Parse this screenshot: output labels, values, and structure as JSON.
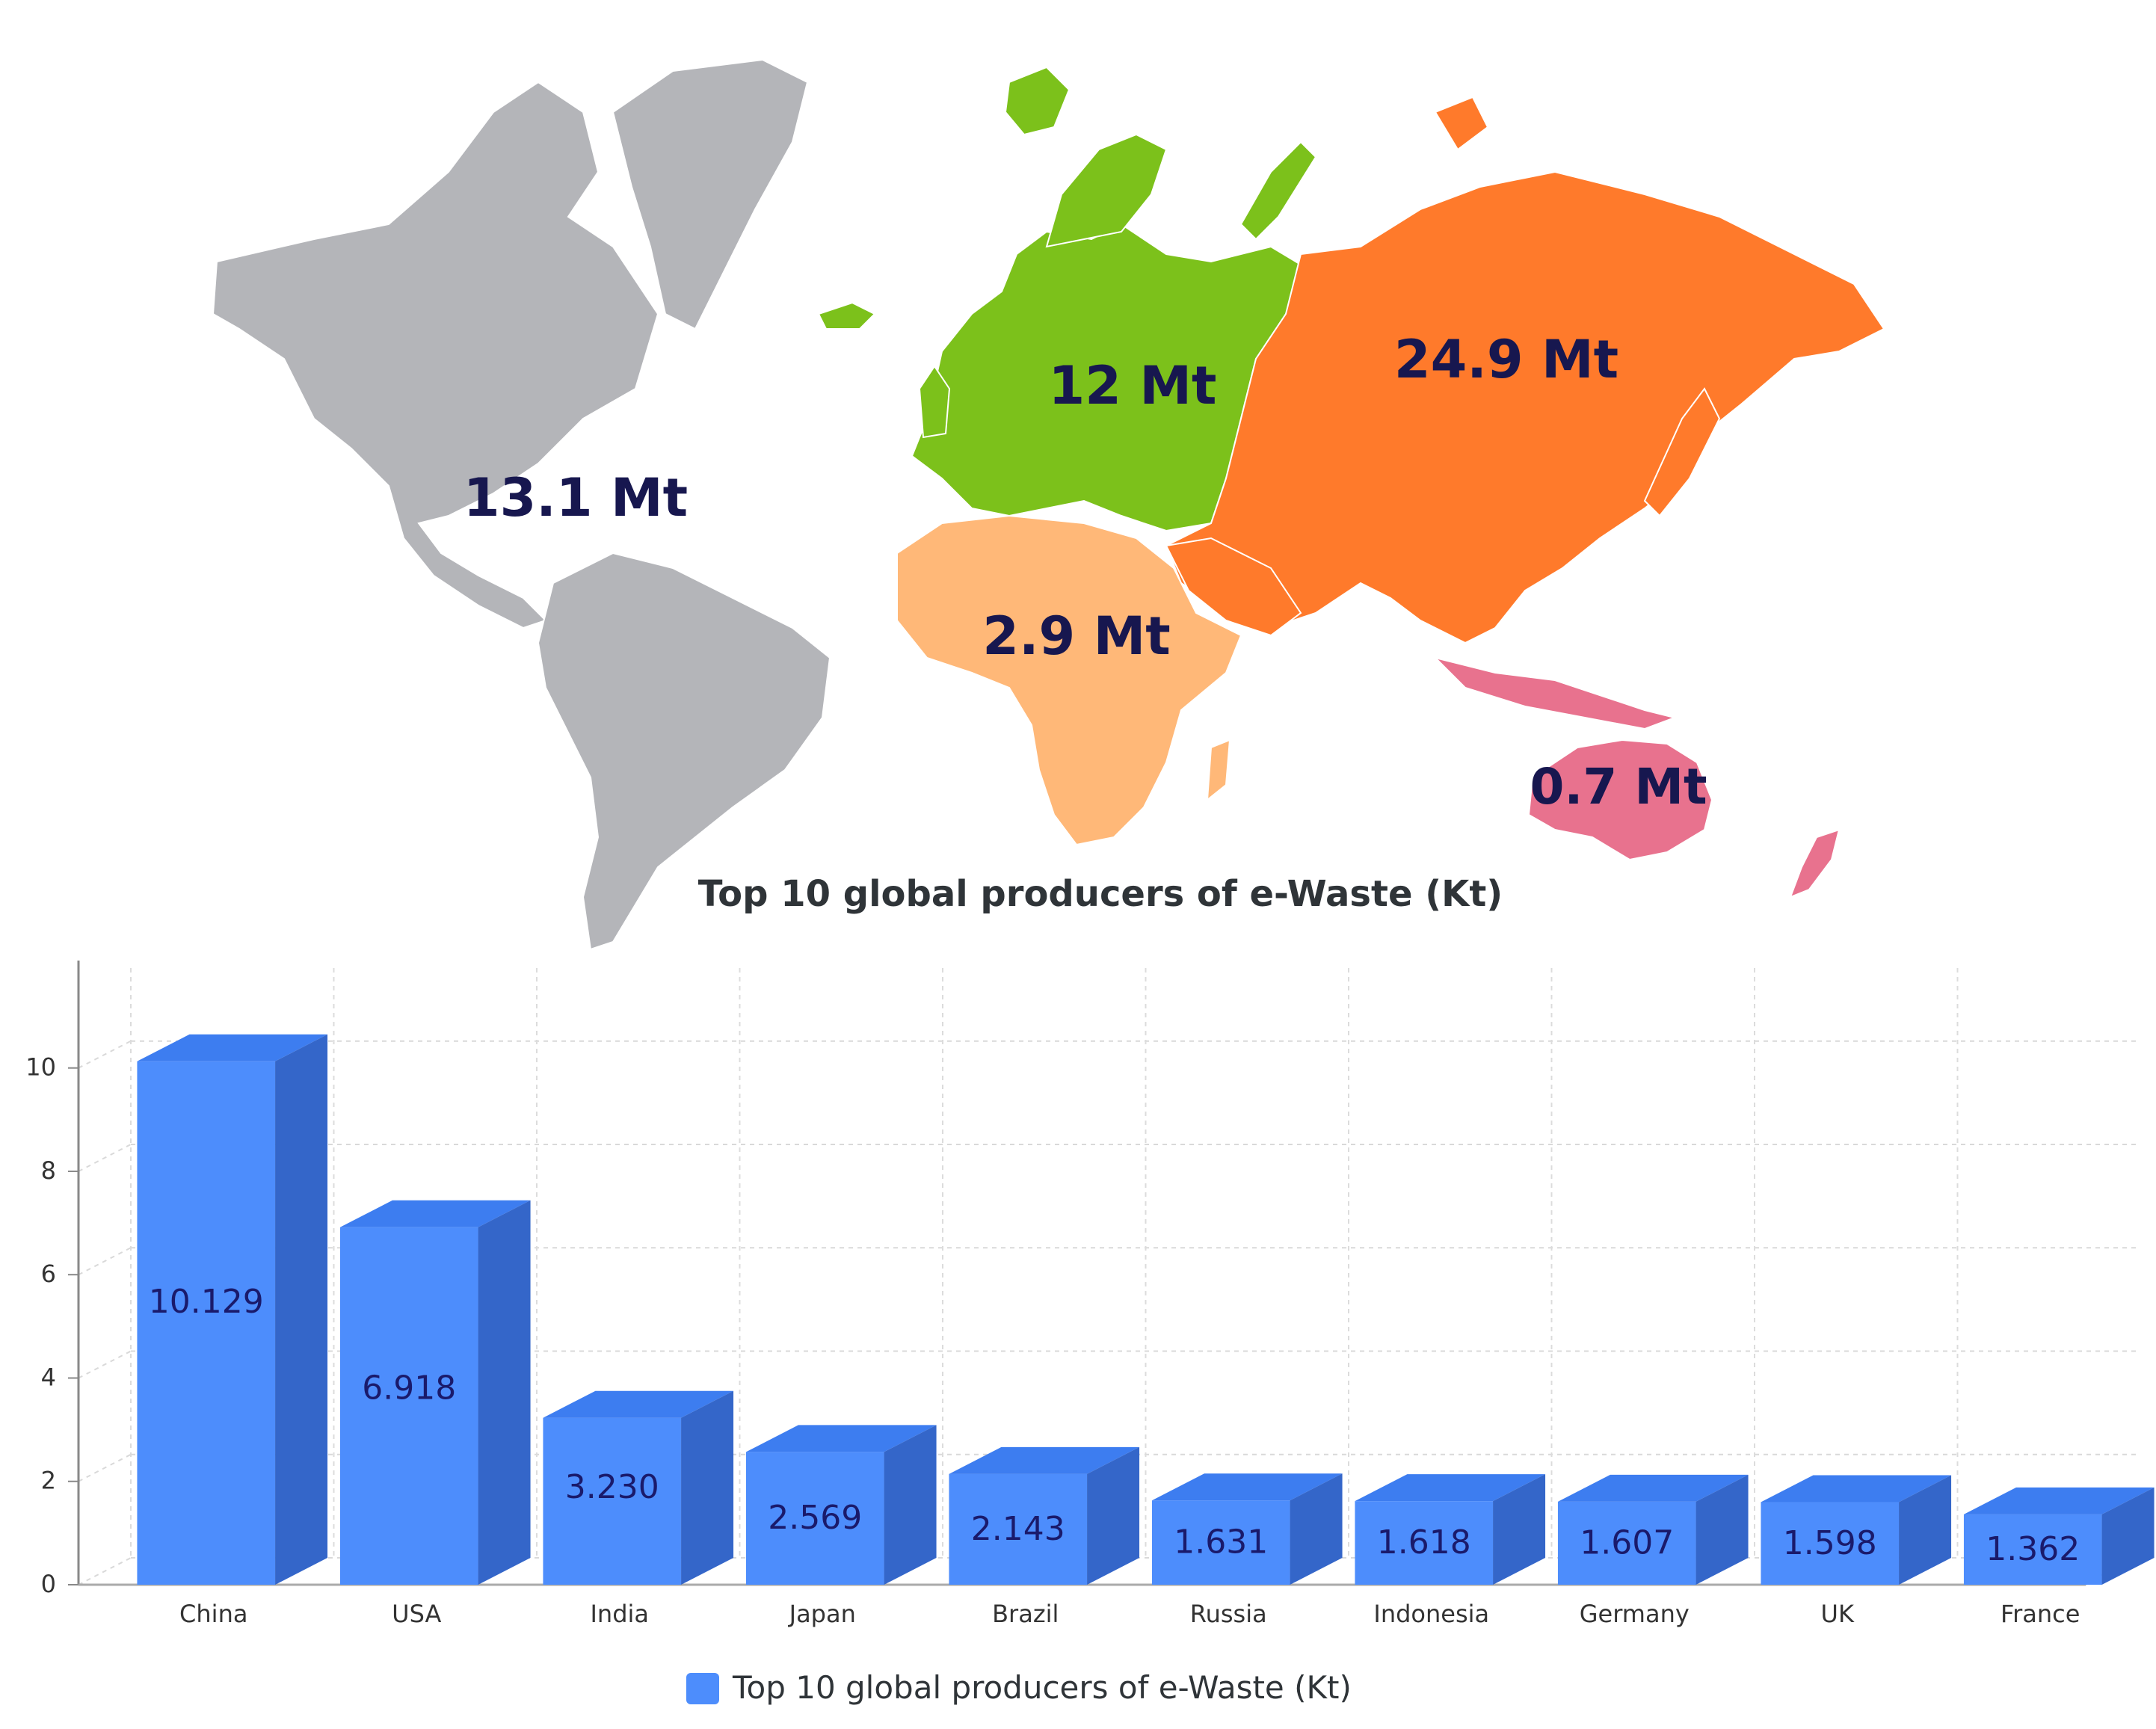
{
  "map": {
    "regions": [
      {
        "name": "americas",
        "label": "13.1 Mt",
        "color": "#b4b5b9"
      },
      {
        "name": "europe",
        "label": "12 Mt",
        "color": "#7cc11b"
      },
      {
        "name": "asia",
        "label": "24.9 Mt",
        "color": "#ff7a2b"
      },
      {
        "name": "africa",
        "label": "2.9 Mt",
        "color": "#ffb878"
      },
      {
        "name": "oceania",
        "label": "0.7 Mt",
        "color": "#e8728e"
      }
    ]
  },
  "chart_data": {
    "type": "bar",
    "title": "Top 10 global producers of e-Waste (Kt)",
    "categories": [
      "China",
      "USA",
      "India",
      "Japan",
      "Brazil",
      "Russia",
      "Indonesia",
      "Germany",
      "UK",
      "France"
    ],
    "series": [
      {
        "name": "Top 10 global producers of e-Waste (Kt)",
        "values": [
          10.129,
          6.918,
          3.23,
          2.569,
          2.143,
          1.631,
          1.618,
          1.607,
          1.598,
          1.362
        ],
        "labels": [
          "10.129",
          "6.918",
          "3.230",
          "2.569",
          "2.143",
          "1.631",
          "1.618",
          "1.607",
          "1.598",
          "1.362"
        ]
      }
    ],
    "yticks": [
      "0",
      "2",
      "4",
      "6",
      "8",
      "10"
    ],
    "ylim": [
      0,
      11.5
    ],
    "grid": true,
    "legend_position": "bottom-center",
    "bar_color": "#4d8dfc"
  }
}
